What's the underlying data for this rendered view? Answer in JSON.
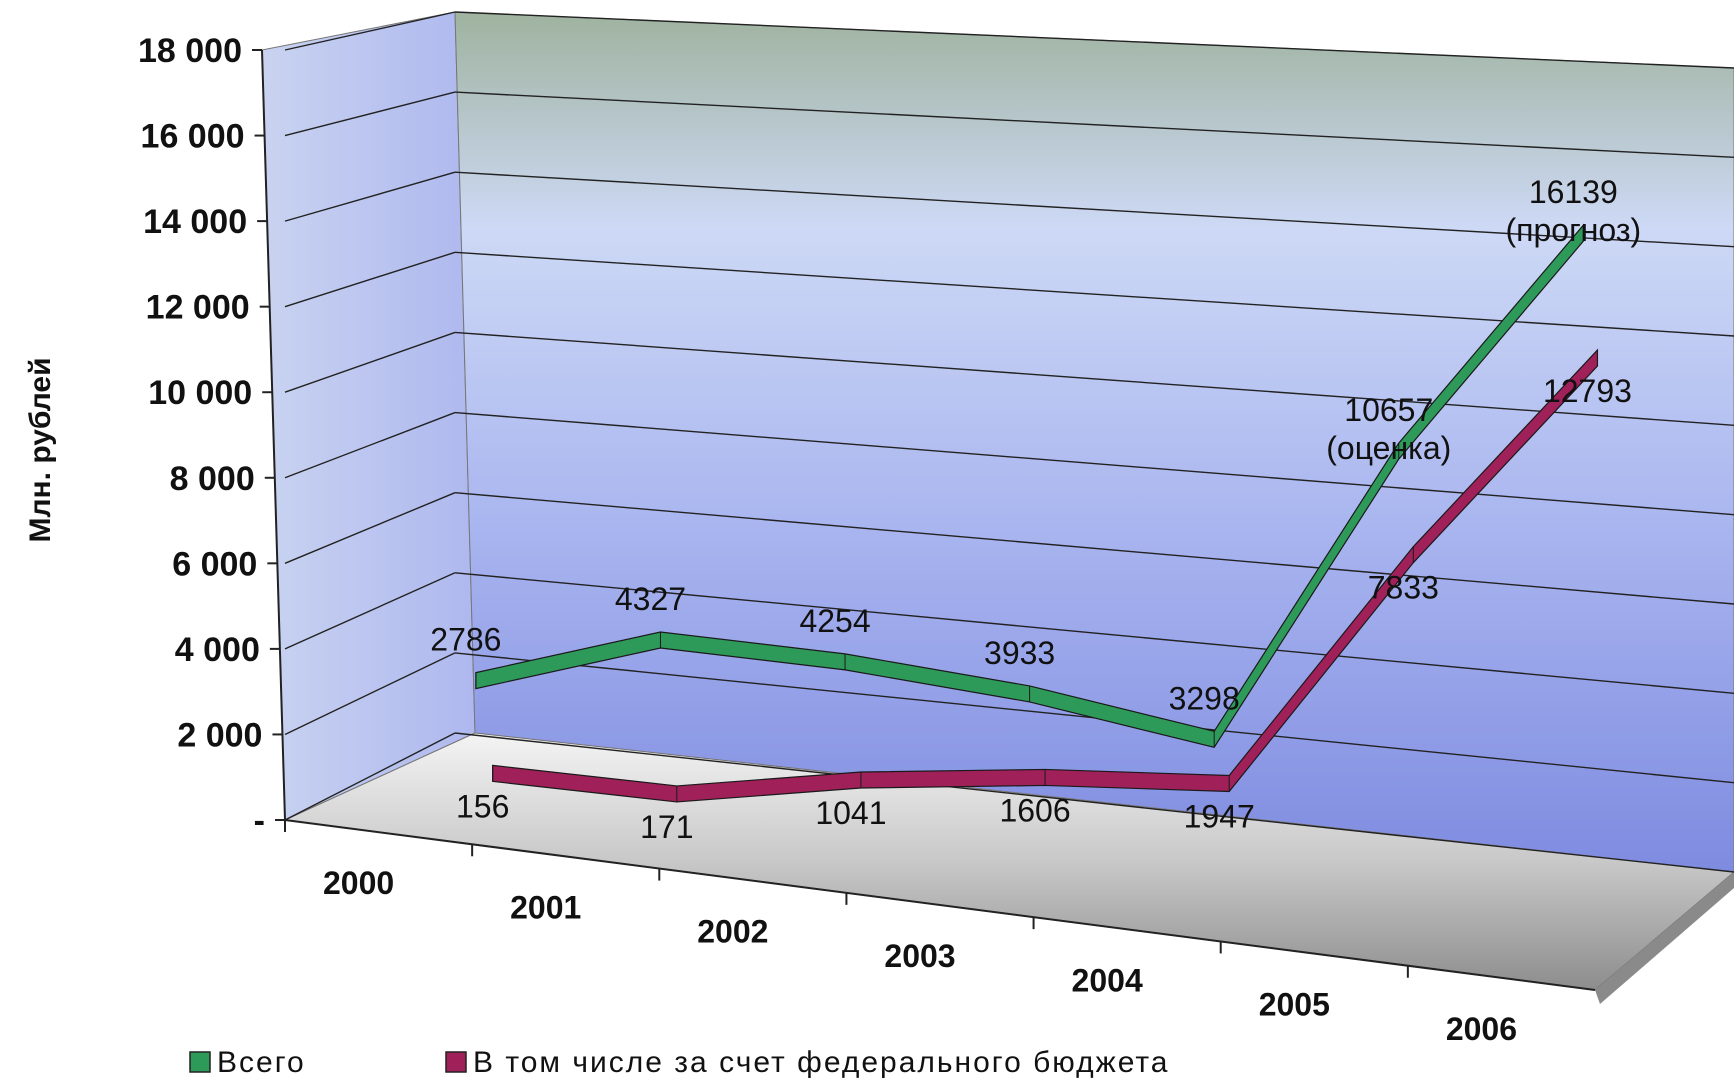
{
  "chart_data": {
    "type": "line",
    "style": "3d-ribbon",
    "categories": [
      "2000",
      "2001",
      "2002",
      "2003",
      "2004",
      "2005",
      "2006"
    ],
    "ylabel": "Млн. рублей",
    "xlabel": "",
    "ylim": [
      0,
      18000
    ],
    "yticks": [
      "-",
      "2 000",
      "4 000",
      "6 000",
      "8 000",
      "10 000",
      "12 000",
      "14 000",
      "16 000",
      "18 000"
    ],
    "grid": true,
    "legend_position": "bottom",
    "series": [
      {
        "name": "Всего",
        "color": "#2e9a5a",
        "values": [
          2786,
          4327,
          4254,
          3933,
          3298,
          10657,
          16139
        ],
        "labels": [
          "2786",
          "4327",
          "4254",
          "3933",
          "3298",
          "10657",
          "16139"
        ],
        "notes": [
          "",
          "",
          "",
          "",
          "",
          "(оценка)",
          "(прогноз)"
        ]
      },
      {
        "name": "В том числе за счет федерального бюджета",
        "color": "#a0205a",
        "values": [
          156,
          171,
          1041,
          1606,
          1947,
          7833,
          12793
        ],
        "labels": [
          "156",
          "171",
          "1041",
          "1606",
          "1947",
          "7833",
          "12793"
        ],
        "notes": [
          "",
          "",
          "",
          "",
          "",
          "",
          ""
        ]
      }
    ]
  }
}
